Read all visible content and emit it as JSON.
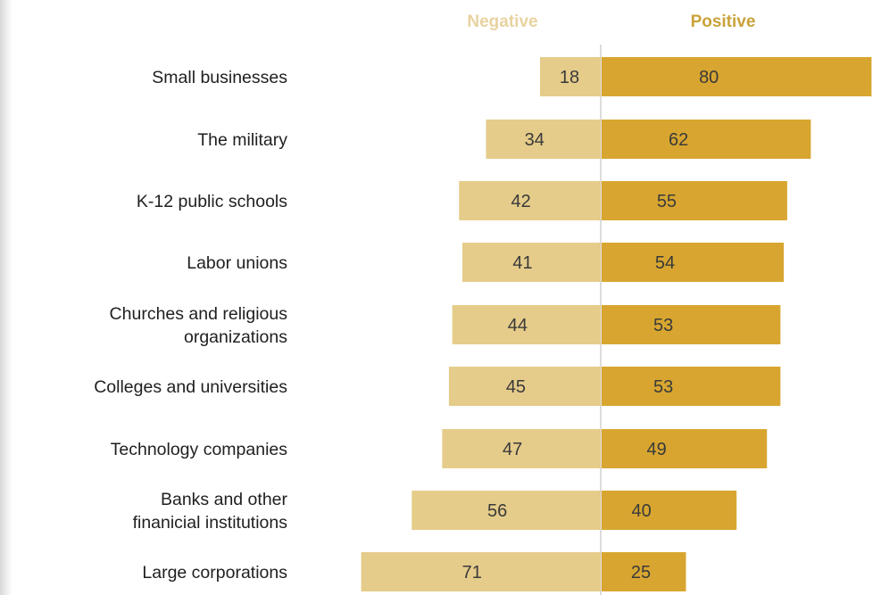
{
  "chart_data": {
    "type": "bar",
    "title": "",
    "xlabel": "",
    "ylabel": "",
    "series": [
      {
        "name": "Negative",
        "values": [
          18,
          34,
          42,
          41,
          44,
          45,
          47,
          56,
          71
        ]
      },
      {
        "name": "Positive",
        "values": [
          80,
          62,
          55,
          54,
          53,
          53,
          49,
          40,
          25
        ]
      }
    ],
    "categories": [
      [
        "Small businesses"
      ],
      [
        "The military"
      ],
      [
        "K-12 public schools"
      ],
      [
        "Labor unions"
      ],
      [
        "Churches and religious",
        "organizations"
      ],
      [
        "Colleges and universities"
      ],
      [
        "Technology companies"
      ],
      [
        "Banks and other",
        "finanicial institutions"
      ],
      [
        "Large corporations"
      ]
    ],
    "xlim": [
      -80,
      80
    ],
    "grid": false,
    "legend": "top",
    "colors": {
      "Negative": "#e5cc8a",
      "Positive": "#d8a630",
      "legend_negative_text": "#e8d3a0",
      "legend_positive_text": "#c9a23a",
      "value_text": "#3a3a3a",
      "label_text": "#1f1f1f",
      "zero_line": "#d0d0d0"
    }
  }
}
